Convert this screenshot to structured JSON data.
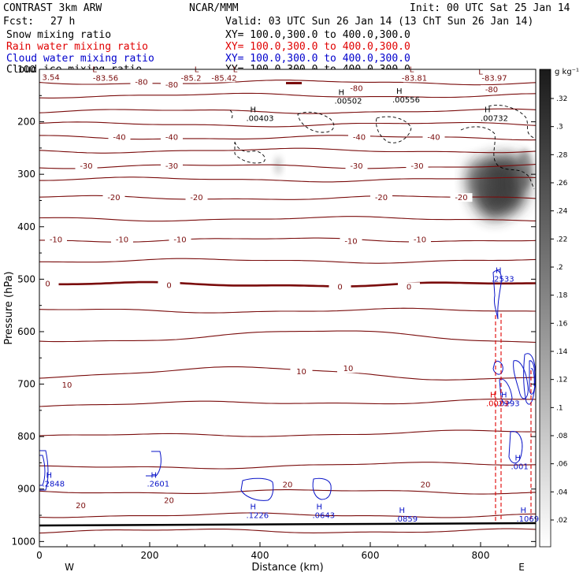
{
  "header": {
    "left1": "CONTRAST  3km ARW",
    "center1": "NCAR/MMM",
    "right1": "Init: 00 UTC Sat 25 Jan 14",
    "fcst_label": "Fcst:",
    "fcst_value": "27 h",
    "valid": "Valid: 03 UTC Sun 26 Jan 14 (13 ChT Sun 26 Jan 14)"
  },
  "fields": [
    {
      "name": "Snow mixing ratio",
      "xy": "XY= 100.0,300.0 to 400.0,300.0",
      "color": "#000000"
    },
    {
      "name": "Rain water mixing ratio",
      "xy": "XY= 100.0,300.0 to 400.0,300.0",
      "color": "#e00000"
    },
    {
      "name": "Cloud water mixing ratio",
      "xy": "XY= 100.0,300.0 to 400.0,300.0",
      "color": "#0000cc"
    },
    {
      "name": "Cloud ice mixing ratio",
      "xy": "XY= 100.0,300.0 to 400.0,300.0",
      "color": "#000000"
    }
  ],
  "colors": {
    "temperature": "#7a0c0c",
    "cloud_water": "#0a14c8",
    "rain": "#e00000",
    "ice": "#000000"
  },
  "chart_data": {
    "type": "cross-section contour",
    "xlabel": "Distance (km)",
    "ylabel": "Pressure (hPa)",
    "xlim": [
      0,
      900
    ],
    "ylim": [
      1000,
      100
    ],
    "x_ticks": [
      0,
      200,
      400,
      600,
      800
    ],
    "y_ticks": [
      100,
      200,
      300,
      400,
      500,
      600,
      700,
      800,
      900,
      1000
    ],
    "endpoints": {
      "left": "W",
      "right": "E"
    },
    "colorbar": {
      "unit": "g kg⁻¹",
      "ticks": [
        ".32",
        ".3",
        ".28",
        ".26",
        ".24",
        ".22",
        ".2",
        ".18",
        ".16",
        ".14",
        ".12",
        ".1",
        ".08",
        ".06",
        ".04",
        ".02"
      ]
    },
    "temperature_lines": [
      {
        "label": "-80",
        "pressure": 125
      },
      {
        "label": "-80",
        "pressure": 150
      },
      {
        "label": "",
        "pressure": 180
      },
      {
        "label": "",
        "pressure": 205
      },
      {
        "label": "-40",
        "pressure": 230
      },
      {
        "label": "",
        "pressure": 255
      },
      {
        "label": "-30",
        "pressure": 285
      },
      {
        "label": "",
        "pressure": 310
      },
      {
        "label": "-20",
        "pressure": 345
      },
      {
        "label": "",
        "pressure": 385
      },
      {
        "label": "-10",
        "pressure": 425
      },
      {
        "label": "",
        "pressure": 465
      },
      {
        "label": "0",
        "pressure": 510
      },
      {
        "label": "",
        "pressure": 560
      },
      {
        "label": "",
        "pressure": 610
      },
      {
        "label": "10",
        "pressure": 680
      },
      {
        "label": "",
        "pressure": 740
      },
      {
        "label": "",
        "pressure": 800
      },
      {
        "label": "",
        "pressure": 860
      },
      {
        "label": "20",
        "pressure": 905
      },
      {
        "label": "",
        "pressure": 950
      },
      {
        "label": "",
        "pressure": 980
      }
    ],
    "temperature_labels": [
      {
        "text": "-83.56",
        "x": 120,
        "p": 120
      },
      {
        "text": "-85.2",
        "x": 275,
        "p": 120
      },
      {
        "text": "-85.42",
        "x": 335,
        "p": 120
      },
      {
        "text": "-83.81",
        "x": 680,
        "p": 120
      },
      {
        "text": "-83.97",
        "x": 825,
        "p": 120
      },
      {
        "text": "-80",
        "x": 185,
        "p": 128
      },
      {
        "text": "-80",
        "x": 240,
        "p": 133
      },
      {
        "text": "-80",
        "x": 575,
        "p": 140
      },
      {
        "text": "-80",
        "x": 820,
        "p": 142
      },
      {
        "text": "-40",
        "x": 145,
        "p": 233
      },
      {
        "text": "-40",
        "x": 240,
        "p": 233
      },
      {
        "text": "-40",
        "x": 580,
        "p": 233
      },
      {
        "text": "-40",
        "x": 715,
        "p": 233
      },
      {
        "text": "-30",
        "x": 85,
        "p": 288
      },
      {
        "text": "-30",
        "x": 240,
        "p": 288
      },
      {
        "text": "-30",
        "x": 575,
        "p": 288
      },
      {
        "text": "-30",
        "x": 685,
        "p": 288
      },
      {
        "text": "-20",
        "x": 135,
        "p": 348
      },
      {
        "text": "-20",
        "x": 285,
        "p": 348
      },
      {
        "text": "-20",
        "x": 620,
        "p": 348
      },
      {
        "text": "-20",
        "x": 765,
        "p": 348
      },
      {
        "text": "-10",
        "x": 30,
        "p": 428
      },
      {
        "text": "-10",
        "x": 150,
        "p": 428
      },
      {
        "text": "-10",
        "x": 255,
        "p": 428
      },
      {
        "text": "-10",
        "x": 565,
        "p": 431
      },
      {
        "text": "-10",
        "x": 690,
        "p": 428
      },
      {
        "text": "0",
        "x": 15,
        "p": 512
      },
      {
        "text": "0",
        "x": 235,
        "p": 515
      },
      {
        "text": "0",
        "x": 545,
        "p": 518
      },
      {
        "text": "0",
        "x": 670,
        "p": 518
      },
      {
        "text": "10",
        "x": 50,
        "p": 705
      },
      {
        "text": "10",
        "x": 475,
        "p": 680
      },
      {
        "text": "10",
        "x": 560,
        "p": 674
      },
      {
        "text": "20",
        "x": 75,
        "p": 935
      },
      {
        "text": "20",
        "x": 235,
        "p": 925
      },
      {
        "text": "20",
        "x": 450,
        "p": 895
      },
      {
        "text": "20",
        "x": 700,
        "p": 895
      }
    ],
    "lows": [
      {
        "text": "L",
        "x": 100,
        "p": 105
      },
      {
        "text": "L",
        "x": 285,
        "p": 105
      },
      {
        "text": "L",
        "x": 355,
        "p": 105
      },
      {
        "text": "L",
        "x": 675,
        "p": 105
      },
      {
        "text": "L",
        "x": 800,
        "p": 110
      }
    ],
    "edge_value": {
      "text": "3.54",
      "x": 5,
      "p": 120
    },
    "ice_maxima": [
      {
        "value": ".00403",
        "x": 375,
        "p": 198
      },
      {
        "value": ".00502",
        "x": 535,
        "p": 165
      },
      {
        "value": ".00556",
        "x": 640,
        "p": 163
      },
      {
        "value": ".00732",
        "x": 800,
        "p": 198
      }
    ],
    "cloud_water_maxima": [
      {
        "value": ".2848",
        "x": 5,
        "p": 895
      },
      {
        "value": ".2601",
        "x": 195,
        "p": 895
      },
      {
        "value": ".1226",
        "x": 375,
        "p": 955
      },
      {
        "value": ".0643",
        "x": 495,
        "p": 955
      },
      {
        "value": ".0859",
        "x": 645,
        "p": 962
      },
      {
        "value": ".1069",
        "x": 865,
        "p": 962
      },
      {
        "value": ".2533",
        "x": 820,
        "p": 505
      },
      {
        "value": ".001",
        "x": 855,
        "p": 862
      },
      {
        "value": ".0293",
        "x": 830,
        "p": 742
      }
    ],
    "rain_maxima": [
      {
        "value": ".0023",
        "x": 810,
        "p": 742
      }
    ]
  }
}
